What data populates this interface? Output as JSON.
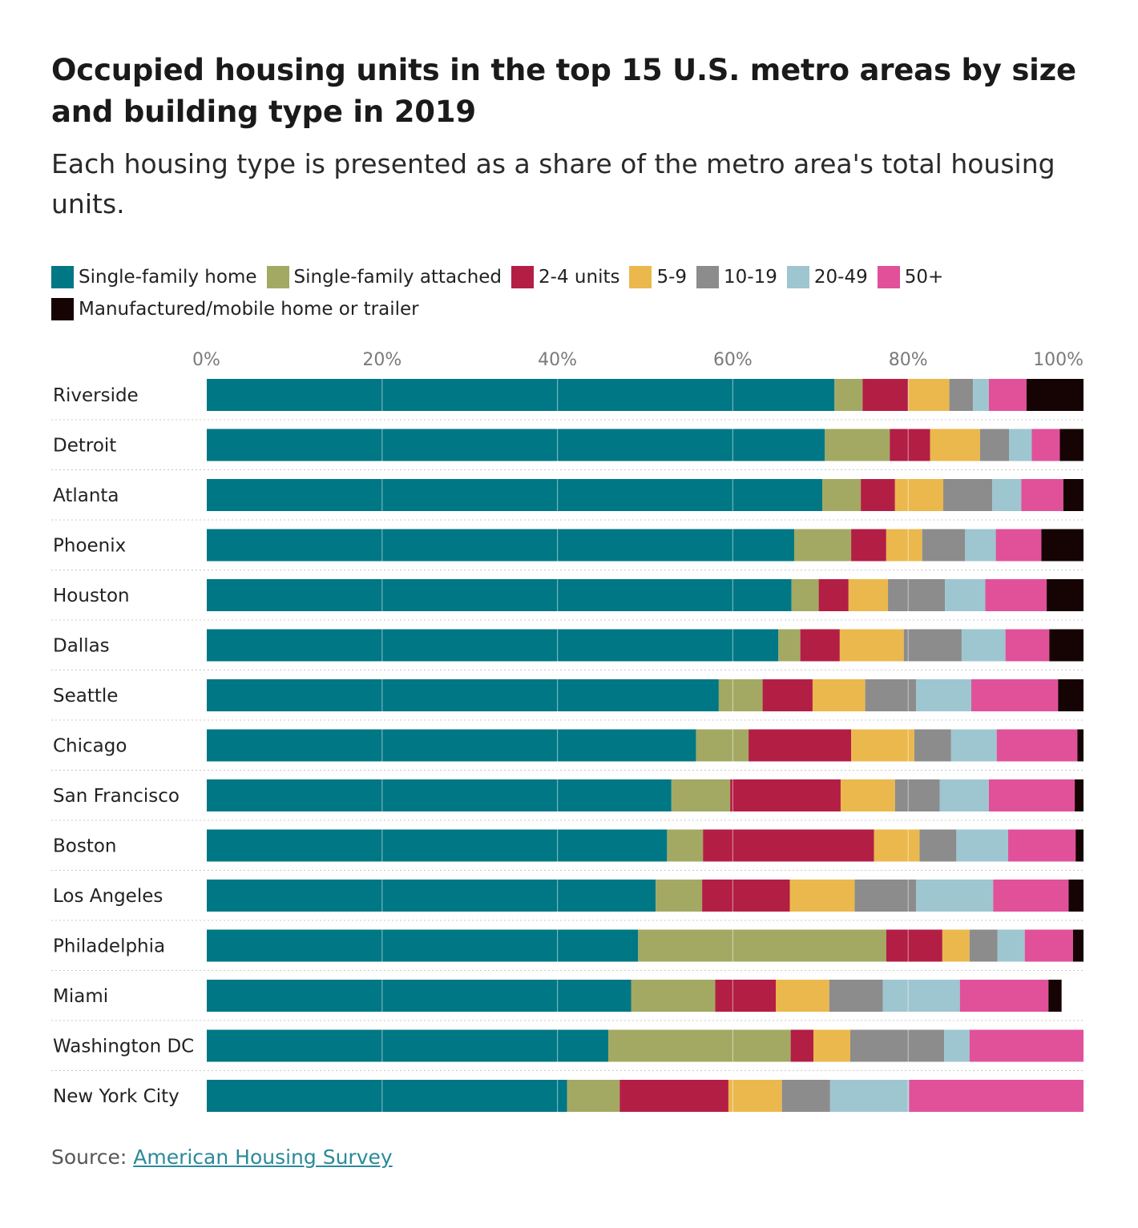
{
  "header": {
    "title": "Occupied housing units in the top 15 U.S. metro areas by size and building type in 2019",
    "subtitle": "Each housing type is presented as a share of the metro area's total housing units."
  },
  "source": {
    "prefix": "Source: ",
    "link_text": "American Housing Survey"
  },
  "chart_data": {
    "type": "bar",
    "orientation": "horizontal",
    "stacked": true,
    "title": "Occupied housing units in the top 15 U.S. metro areas by size and building type in 2019",
    "xlabel": "",
    "ylabel": "",
    "xlim": [
      0,
      100
    ],
    "x_ticks": [
      "0%",
      "20%",
      "40%",
      "60%",
      "80%",
      "100%"
    ],
    "grid": true,
    "legend_position": "top",
    "categories": [
      "Riverside",
      "Detroit",
      "Atlanta",
      "Phoenix",
      "Houston",
      "Dallas",
      "Seattle",
      "Chicago",
      "San Francisco",
      "Boston",
      "Los Angeles",
      "Philadelphia",
      "Miami",
      "Washington DC",
      "New York City"
    ],
    "series": [
      {
        "name": "Single-family home",
        "color": "#007785",
        "values": [
          71.6,
          70.5,
          70.2,
          67.0,
          66.7,
          65.2,
          58.4,
          55.8,
          53.0,
          52.5,
          51.2,
          49.2,
          48.4,
          45.8,
          41.1
        ]
      },
      {
        "name": "Single-family attached",
        "color": "#a3a962",
        "values": [
          3.2,
          7.4,
          4.4,
          6.5,
          3.1,
          2.5,
          5.0,
          6.0,
          6.7,
          4.1,
          5.3,
          28.3,
          9.6,
          20.8,
          6.0
        ]
      },
      {
        "name": "2-4 units",
        "color": "#b31e45",
        "values": [
          5.2,
          4.6,
          3.9,
          4.0,
          3.4,
          4.5,
          5.7,
          11.7,
          12.6,
          19.5,
          10.0,
          6.4,
          6.9,
          2.6,
          12.4
        ]
      },
      {
        "name": "5-9",
        "color": "#ebb84d",
        "values": [
          4.7,
          5.7,
          5.5,
          4.1,
          4.5,
          7.3,
          6.0,
          7.2,
          6.2,
          5.2,
          7.4,
          3.1,
          6.1,
          4.2,
          6.1
        ]
      },
      {
        "name": "10-19",
        "color": "#8c8c8c",
        "values": [
          2.7,
          3.3,
          5.6,
          4.9,
          6.5,
          6.6,
          5.8,
          4.2,
          5.1,
          4.2,
          7.0,
          3.2,
          6.1,
          10.7,
          5.5
        ]
      },
      {
        "name": "20-49",
        "color": "#9ec6d0",
        "values": [
          1.8,
          2.6,
          3.3,
          3.5,
          4.6,
          5.0,
          6.3,
          5.2,
          5.6,
          5.9,
          8.8,
          3.1,
          8.8,
          2.9,
          9.0
        ]
      },
      {
        "name": "50+",
        "color": "#e0519a",
        "values": [
          4.3,
          3.2,
          4.8,
          5.2,
          7.0,
          5.0,
          9.9,
          9.2,
          9.8,
          7.7,
          8.6,
          5.5,
          10.1,
          13.0,
          19.9
        ]
      },
      {
        "name": "Manufactured/mobile home or trailer",
        "color": "#160404",
        "values": [
          6.5,
          2.7,
          2.3,
          4.8,
          4.2,
          3.9,
          2.9,
          0.7,
          1.0,
          0.9,
          1.7,
          1.2,
          1.5,
          0.0,
          0.0
        ]
      }
    ]
  }
}
